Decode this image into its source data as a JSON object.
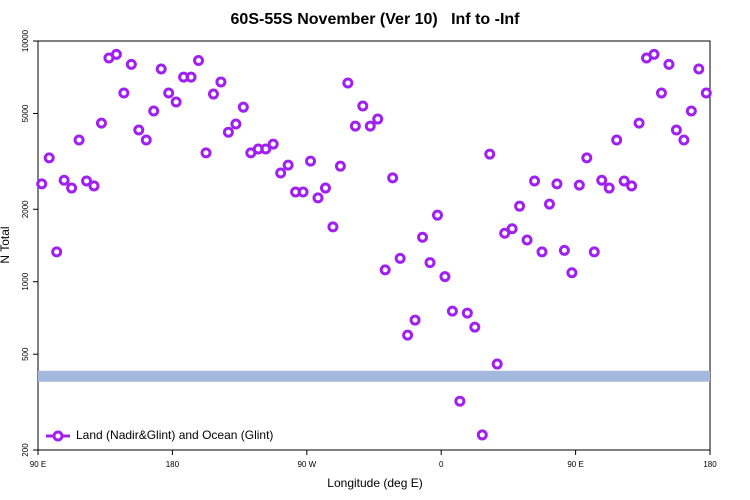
{
  "chart_data": {
    "type": "scatter",
    "title": "60S-55S November (Ver 10)   Inf to -Inf",
    "x_label": "Longitude (deg E)",
    "y_label": "N Total",
    "log_y": true,
    "xlim": [
      90,
      540
    ],
    "ylim": [
      200,
      10000
    ],
    "xticks": [
      {
        "value": 90,
        "label": "90 E"
      },
      180,
      {
        "value": 270,
        "label": "90 W"
      },
      {
        "value": 360,
        "label": "0"
      },
      {
        "value": 450,
        "label": "90 E"
      },
      {
        "value": 540,
        "label": "180"
      }
    ],
    "yticks": [
      200,
      500,
      1000,
      2000,
      5000,
      10000
    ],
    "reference_line": {
      "value": 405,
      "color": "#a3b8dc"
    },
    "legend": "bottom-left",
    "x": [
      92.5,
      97.5,
      102.5,
      107.5,
      112.5,
      117.5,
      122.5,
      127.5,
      132.5,
      137.5,
      142.5,
      147.5,
      152.5,
      157.5,
      162.5,
      167.5,
      172.5,
      177.5,
      182.5,
      187.5,
      192.5,
      197.5,
      202.5,
      207.5,
      212.5,
      217.5,
      222.5,
      227.5,
      232.5,
      237.5,
      242.5,
      247.5,
      252.5,
      257.5,
      262.5,
      267.5,
      272.5,
      277.5,
      282.5,
      287.5,
      292.5,
      297.5,
      302.5,
      307.5,
      312.5,
      317.5,
      322.5,
      327.5,
      332.5,
      337.5,
      342.5,
      347.5,
      352.5,
      357.5,
      362.5,
      367.5,
      372.5,
      377.5,
      382.5,
      387.5,
      392.5,
      397.5,
      402.5,
      407.5,
      412.5,
      417.5,
      422.5,
      427.5,
      432.5,
      437.5,
      442.5,
      447.5,
      452.5,
      457.5,
      462.5,
      467.5,
      472.5,
      477.5,
      482.5,
      487.5,
      492.5,
      497.5,
      502.5,
      507.5,
      512.5,
      517.5,
      522.5,
      527.5,
      532.5,
      537.5
    ],
    "series": [
      {
        "name": "Land (Nadir&Glint) and Ocean (Glint)",
        "color": "#a020f0",
        "values": [
          2550,
          3270,
          1330,
          2640,
          2450,
          3880,
          2620,
          2500,
          4560,
          8500,
          8800,
          6080,
          8000,
          4270,
          3880,
          5120,
          7650,
          6080,
          5580,
          7080,
          7080,
          8300,
          3430,
          6020,
          6760,
          4180,
          4520,
          5310,
          3430,
          3560,
          3560,
          3730,
          2830,
          3050,
          2360,
          2360,
          3170,
          2230,
          2450,
          1690,
          3020,
          6690,
          4430,
          5370,
          4430,
          4740,
          1120,
          2700,
          1250,
          600,
          693,
          1530,
          1200,
          1890,
          1050,
          755,
          319,
          741,
          648,
          231,
          3390,
          455,
          1590,
          1660,
          2060,
          1490,
          2620,
          1330,
          2100,
          2550,
          1350,
          1090,
          2520,
          3270,
          1330,
          2640,
          2450,
          3880,
          2620,
          2500,
          4560,
          8500,
          8800,
          6080,
          8000,
          4270,
          3880,
          5120,
          7650,
          6080
        ]
      }
    ]
  }
}
